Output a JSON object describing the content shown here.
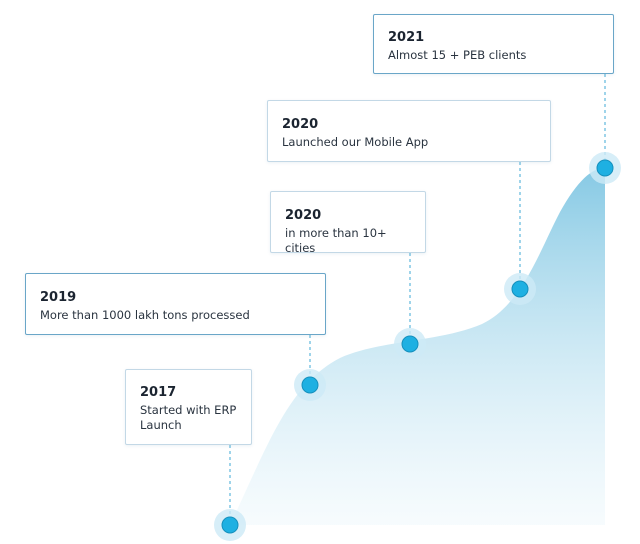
{
  "milestones": [
    {
      "year": "2017",
      "text": "Started with ERP Launch"
    },
    {
      "year": "2019",
      "text": "More than 1000 lakh tons processed"
    },
    {
      "year": "2020",
      "text": "in more than 10+ cities"
    },
    {
      "year": "2020",
      "text": "Launched our Mobile App"
    },
    {
      "year": "2021",
      "text": "Almost 15 + PEB clients"
    }
  ]
}
